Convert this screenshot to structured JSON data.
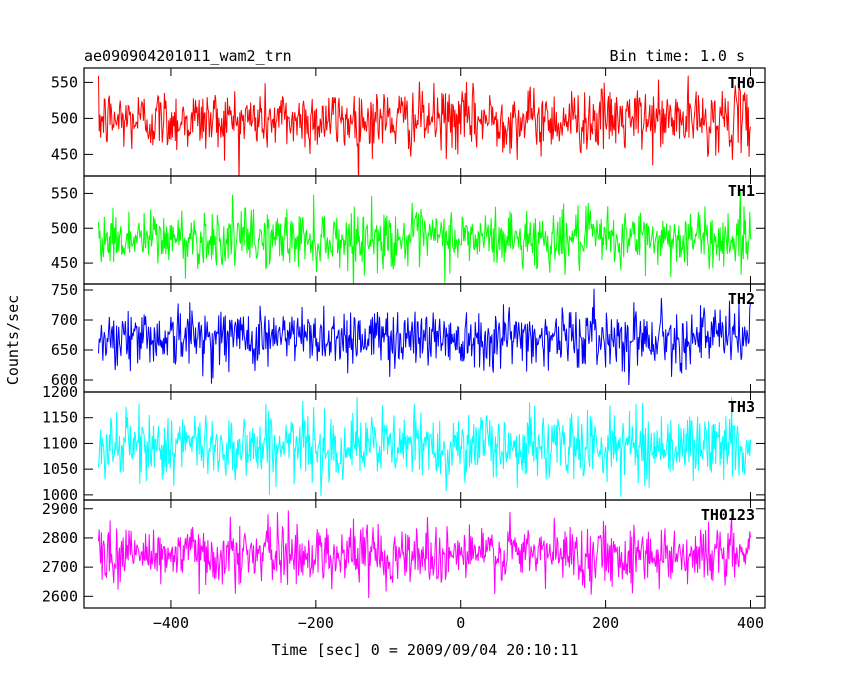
{
  "header": {
    "title": "ae090904201011_wam2_trn",
    "bin_time": "Bin time: 1.0 s"
  },
  "chart_data": {
    "type": "line",
    "ylabel": "Counts/sec",
    "xlabel": "Time [sec] 0 = 2009/09/04 20:10:11",
    "xlim": [
      -520,
      420
    ],
    "x_range": [
      -500,
      400
    ],
    "x_ticks": [
      -400,
      -200,
      0,
      200,
      400
    ],
    "x_tick_labels": [
      "−400",
      "−200",
      "0",
      "200",
      "400"
    ],
    "panels": [
      {
        "name": "TH0",
        "color": "#ff0000",
        "mean": 498,
        "sigma": 22,
        "ylim": [
          420,
          570
        ],
        "yticks": [
          450,
          500,
          550
        ]
      },
      {
        "name": "TH1",
        "color": "#00ff00",
        "mean": 485,
        "sigma": 21,
        "ylim": [
          420,
          575
        ],
        "yticks": [
          450,
          500,
          550
        ]
      },
      {
        "name": "TH2",
        "color": "#0000ff",
        "mean": 672,
        "sigma": 25,
        "ylim": [
          580,
          760
        ],
        "yticks": [
          600,
          650,
          700,
          750
        ]
      },
      {
        "name": "TH3",
        "color": "#00ffff",
        "mean": 1095,
        "sigma": 33,
        "ylim": [
          990,
          1200
        ],
        "yticks": [
          1000,
          1050,
          1100,
          1150,
          1200
        ]
      },
      {
        "name": "TH0123",
        "color": "#ff00ff",
        "mean": 2745,
        "sigma": 52,
        "ylim": [
          2560,
          2930
        ],
        "yticks": [
          2600,
          2700,
          2800,
          2900
        ]
      }
    ]
  }
}
